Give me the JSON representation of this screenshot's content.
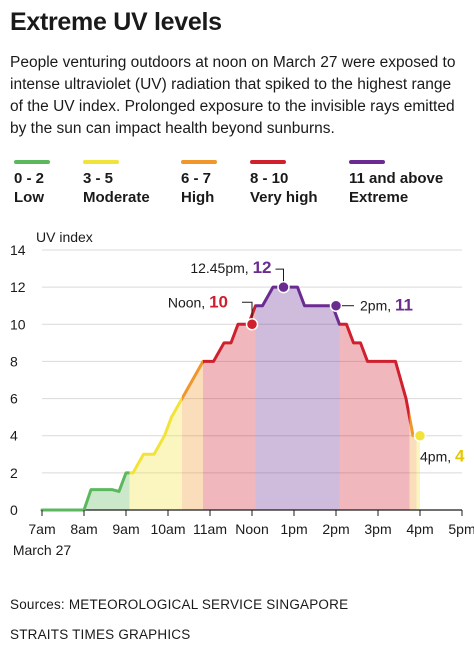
{
  "title": "Extreme UV levels",
  "intro": "People venturing outdoors at noon on March 27 were exposed to intense ultraviolet (UV) radiation that spiked to the highest range of the UV index. Prolonged exposure to the invisible rays emitted by the sun can impact health beyond sunburns.",
  "legend": [
    {
      "range": "0 - 2",
      "name": "Low",
      "color": "#5cb85c"
    },
    {
      "range": "3 - 5",
      "name": "Moderate",
      "color": "#f2e33b"
    },
    {
      "range": "6 - 7",
      "name": "High",
      "color": "#f0962a"
    },
    {
      "range": "8 - 10",
      "name": "Very high",
      "color": "#d0202e"
    },
    {
      "range": "11 and above",
      "name": "Extreme",
      "color": "#6b2c91"
    }
  ],
  "chart_data": {
    "type": "area",
    "ylabel": "UV index",
    "ylim": [
      0,
      14
    ],
    "yticks": [
      "0",
      "2",
      "4",
      "6",
      "8",
      "10",
      "12",
      "14"
    ],
    "xticks": [
      "7am",
      "8am",
      "9am",
      "10am",
      "11am",
      "Noon",
      "1pm",
      "2pm",
      "3pm",
      "4pm",
      "5pm"
    ],
    "x_start_label": "March 27",
    "grid": "horizontal",
    "series": [
      {
        "x": [
          "7:00",
          "8:00",
          "8:10",
          "8:40",
          "8:50",
          "9:00",
          "9:10",
          "9:25",
          "9:40",
          "9:55",
          "10:05",
          "10:20",
          "10:35",
          "10:50",
          "11:05",
          "11:20",
          "11:30",
          "11:40",
          "11:55",
          "12:05",
          "12:15",
          "12:30",
          "12:45",
          "12:55",
          "13:05",
          "13:15",
          "13:30",
          "13:45",
          "13:55",
          "14:05",
          "14:15",
          "14:25",
          "14:35",
          "14:45",
          "15:00",
          "15:15",
          "15:25",
          "15:40",
          "15:50",
          "16:00"
        ],
        "y": [
          0,
          0,
          1.1,
          1.1,
          1,
          2,
          2,
          3,
          3,
          4,
          5,
          6,
          7,
          8,
          8,
          9,
          9,
          10,
          10,
          11,
          11,
          12,
          12,
          12,
          12,
          11,
          11,
          11,
          11,
          10,
          10,
          9,
          9,
          8,
          8,
          8,
          8,
          6,
          4,
          4
        ]
      }
    ],
    "bands": [
      {
        "from": "7:00",
        "to": "9:05",
        "color": "#5cb85c"
      },
      {
        "from": "9:05",
        "to": "10:20",
        "color": "#f2e33b"
      },
      {
        "from": "10:20",
        "to": "10:50",
        "color": "#f0962a"
      },
      {
        "from": "10:50",
        "to": "12:05",
        "color": "#d0202e"
      },
      {
        "from": "12:05",
        "to": "14:05",
        "color": "#6b2c91"
      },
      {
        "from": "14:05",
        "to": "15:45",
        "color": "#d0202e"
      },
      {
        "from": "15:45",
        "to": "15:55",
        "color": "#f0962a"
      },
      {
        "from": "15:55",
        "to": "16:00",
        "color": "#f2e33b"
      }
    ],
    "annotations": [
      {
        "x": "12:45",
        "y": 12,
        "time_text": "12.45pm,",
        "value_text": "12",
        "color": "#6b2c91",
        "side": "top"
      },
      {
        "x": "12:00",
        "y": 10,
        "time_text": "Noon,",
        "value_text": "10",
        "color": "#d0202e",
        "side": "left"
      },
      {
        "x": "14:00",
        "y": 11,
        "time_text": "2pm,",
        "value_text": "11",
        "color": "#6b2c91",
        "side": "right"
      },
      {
        "x": "16:00",
        "y": 4,
        "time_text": "4pm,",
        "value_text": "4",
        "color": "#f2e33b",
        "side": "below-right"
      }
    ]
  },
  "source": "Sources: METEOROLOGICAL SERVICE SINGAPORE",
  "credit": "STRAITS TIMES GRAPHICS"
}
